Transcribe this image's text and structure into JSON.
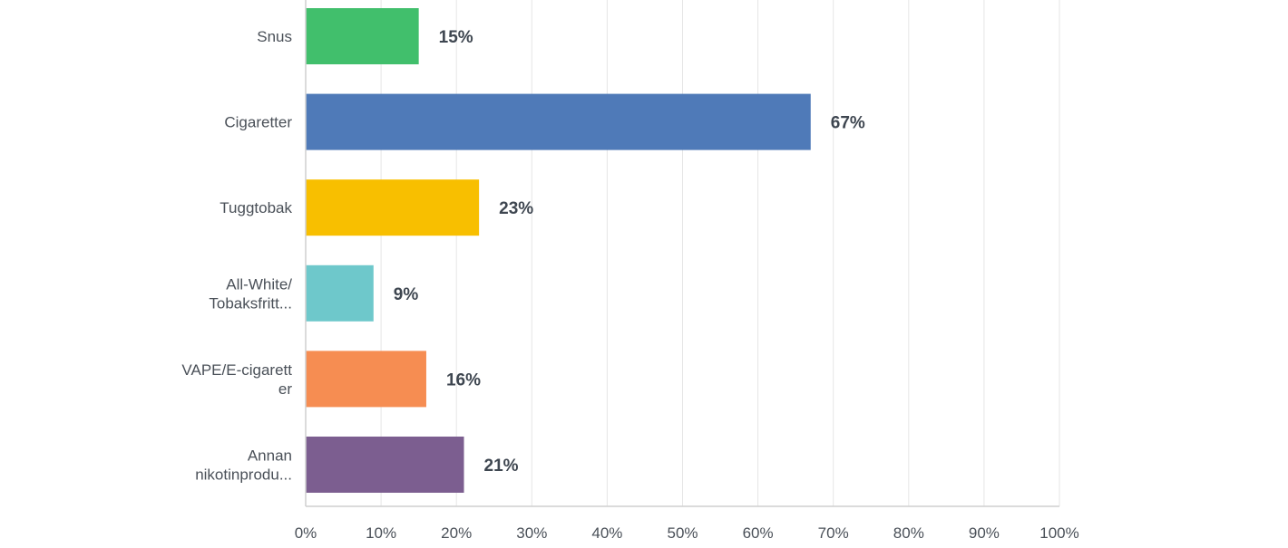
{
  "chart_data": {
    "type": "bar",
    "orientation": "horizontal",
    "categories": [
      [
        "Snus"
      ],
      [
        "Cigaretter"
      ],
      [
        "Tuggtobak"
      ],
      [
        "All-White/",
        "Tobaksfritt..."
      ],
      [
        "VAPE/E-cigarett",
        "er"
      ],
      [
        "Annan",
        "nikotinprodu..."
      ]
    ],
    "values": [
      15,
      67,
      23,
      9,
      16,
      21
    ],
    "value_labels": [
      "15%",
      "67%",
      "23%",
      "9%",
      "16%",
      "21%"
    ],
    "colors": [
      "#41bf6c",
      "#4f7ab8",
      "#f8bf00",
      "#6ec8cb",
      "#f68d52",
      "#7c5e90"
    ],
    "xlim": [
      0,
      100
    ],
    "xticks": [
      0,
      10,
      20,
      30,
      40,
      50,
      60,
      70,
      80,
      90,
      100
    ],
    "xtick_labels": [
      "0%",
      "10%",
      "20%",
      "30%",
      "40%",
      "50%",
      "60%",
      "70%",
      "80%",
      "90%",
      "100%"
    ],
    "grid": true,
    "title": "",
    "xlabel": "",
    "ylabel": ""
  }
}
